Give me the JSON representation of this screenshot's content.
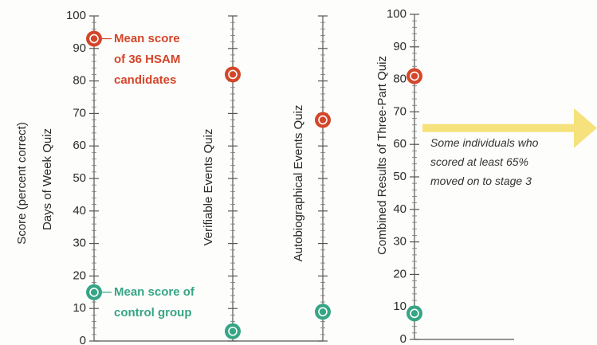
{
  "chart_data": [
    {
      "type": "dot",
      "ylabel": "Score (percent correct)",
      "categories": [
        "Days of Week Quiz",
        "Verifiable Events Quiz",
        "Autobiographical Events Quiz"
      ],
      "series": [
        {
          "name": "Mean score of 36 HSAM candidates",
          "color": "#d4462a",
          "values": [
            93,
            82,
            68
          ]
        },
        {
          "name": "Mean score of control group",
          "color": "#35a585",
          "values": [
            15,
            3,
            9
          ]
        }
      ],
      "ylim": [
        0,
        100
      ],
      "yticks": [
        0,
        10,
        20,
        30,
        40,
        50,
        60,
        70,
        80,
        90,
        100
      ]
    },
    {
      "type": "dot",
      "categories": [
        "Combined Results of Three-Part Quiz"
      ],
      "series": [
        {
          "color": "#d4462a",
          "values": [
            81
          ]
        },
        {
          "color": "#35a585",
          "values": [
            8
          ]
        }
      ],
      "ylim": [
        0,
        100
      ],
      "yticks": [
        0,
        10,
        20,
        30,
        40,
        50,
        60,
        70,
        80,
        90,
        100
      ],
      "threshold": 65,
      "annotation": "Some individuals who scored at least 65% moved on to stage 3",
      "threshold_color": "#f6e27c"
    }
  ]
}
